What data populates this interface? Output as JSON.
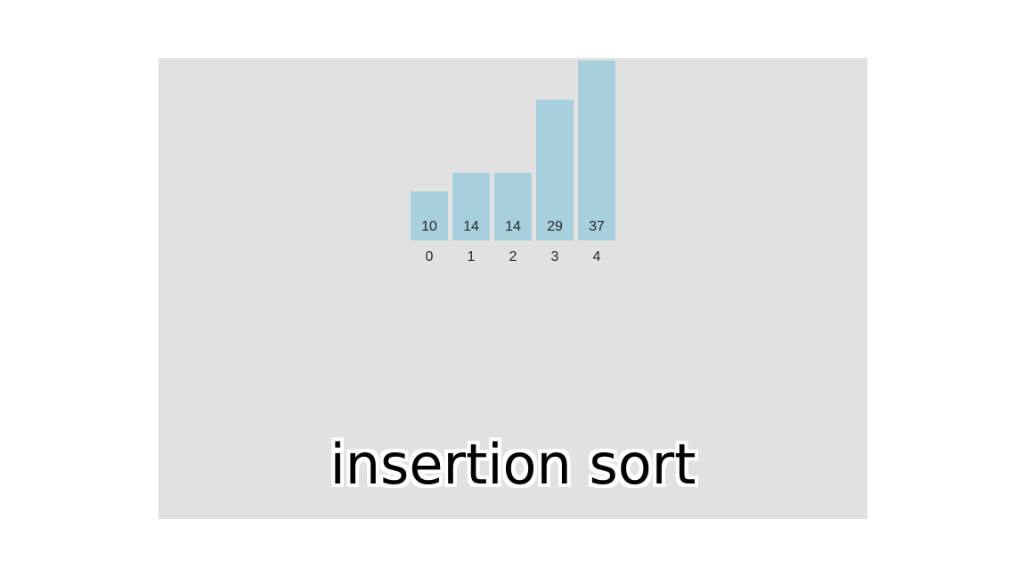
{
  "caption": "insertion sort",
  "colors": {
    "background": "#ffffff",
    "panel": "#e1e1e1",
    "bar": "#a8cfdc",
    "text": "#2a2a2a"
  },
  "chart_data": {
    "type": "bar",
    "categories": [
      "0",
      "1",
      "2",
      "3",
      "4"
    ],
    "values": [
      10,
      14,
      14,
      29,
      37
    ]
  }
}
